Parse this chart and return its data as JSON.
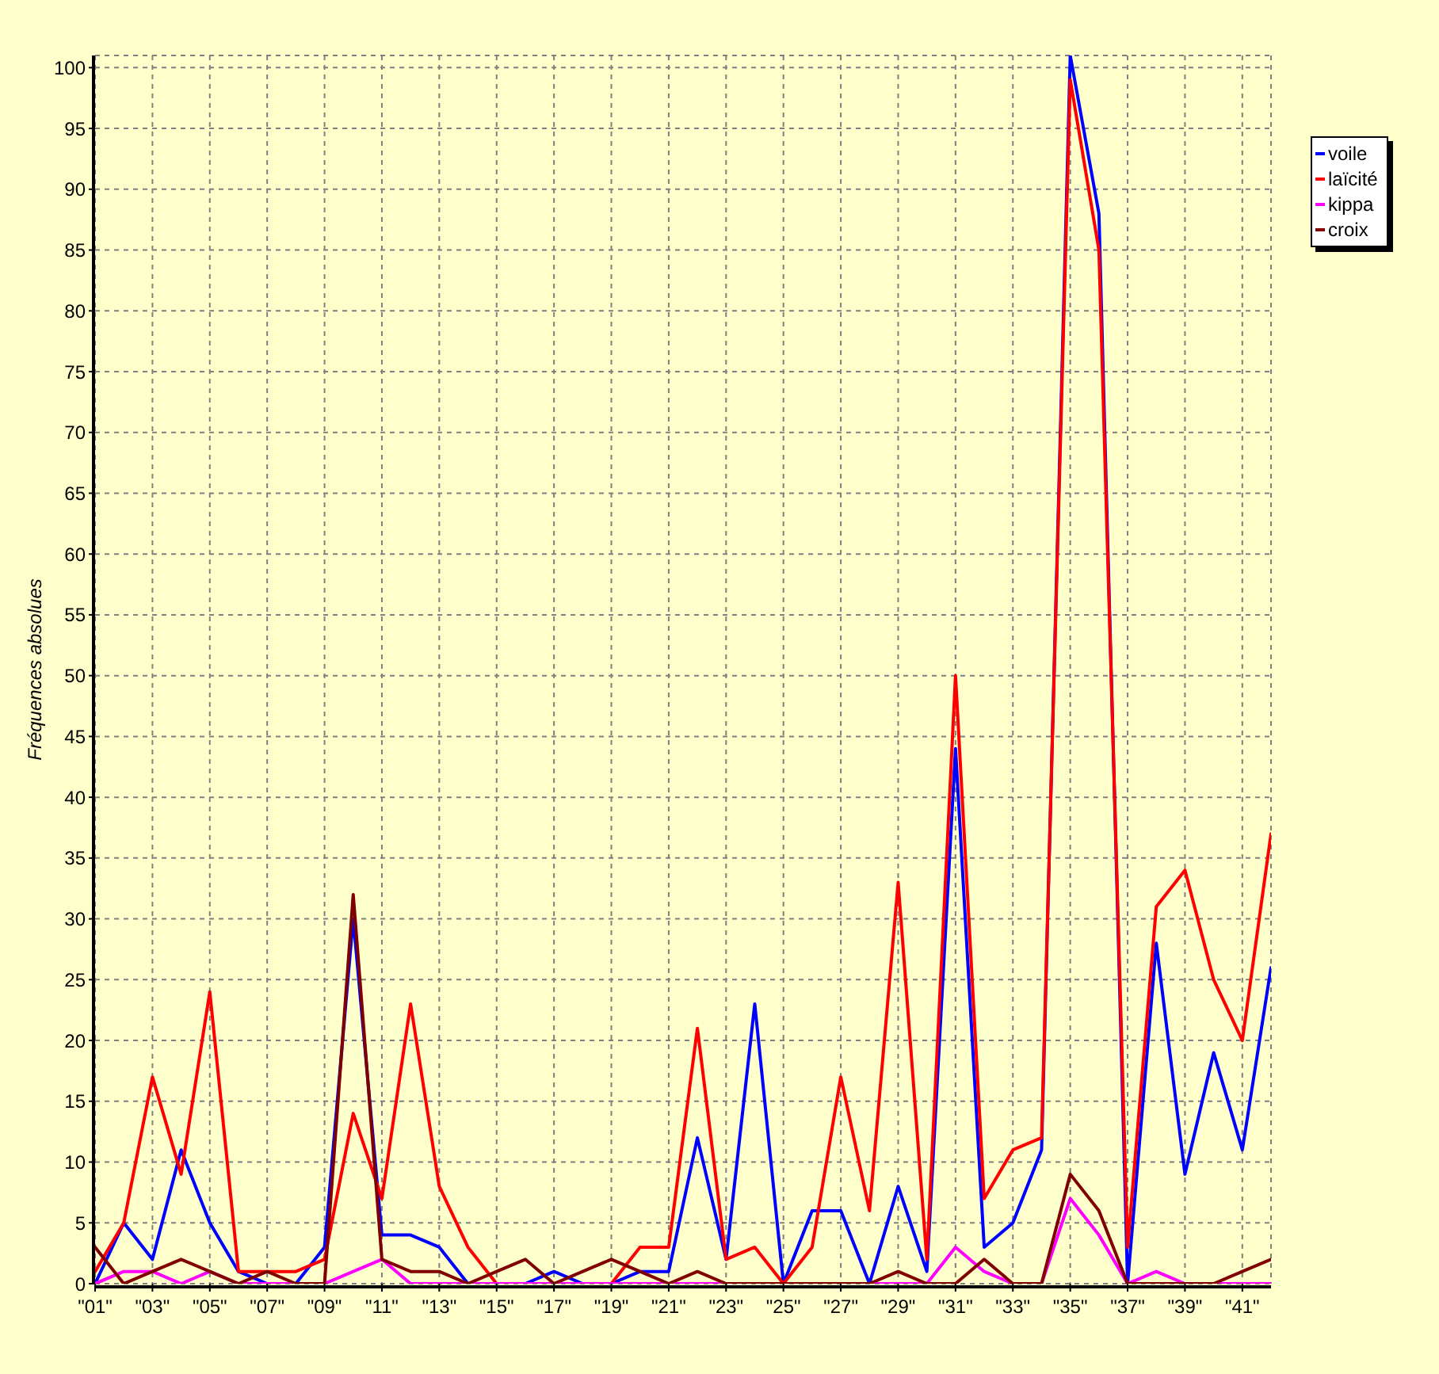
{
  "chart_data": {
    "type": "line",
    "ylabel": "Fréquences absolues",
    "categories": [
      "\"01\"",
      null,
      "\"03\"",
      null,
      "\"05\"",
      null,
      "\"07\"",
      null,
      "\"09\"",
      null,
      "\"11\"",
      null,
      "\"13\"",
      null,
      "\"15\"",
      null,
      "\"17\"",
      null,
      "\"19\"",
      null,
      "\"21\"",
      null,
      "\"23\"",
      null,
      "\"25\"",
      null,
      "\"27\"",
      null,
      "\"29\"",
      null,
      "\"31\"",
      null,
      "\"33\"",
      null,
      "\"35\"",
      null,
      "\"37\"",
      null,
      "\"39\"",
      null,
      "\"41\"",
      null
    ],
    "series": [
      {
        "name": "voile",
        "color": "#0000ff",
        "values": [
          0,
          5,
          2,
          11,
          5,
          1,
          0,
          0,
          3,
          30,
          4,
          4,
          3,
          0,
          0,
          0,
          1,
          0,
          0,
          1,
          1,
          12,
          2,
          23,
          0,
          6,
          6,
          0,
          8,
          1,
          44,
          3,
          5,
          11,
          101,
          88,
          0,
          28,
          9,
          19,
          11,
          26
        ]
      },
      {
        "name": "laïcité",
        "color": "#ff0000",
        "values": [
          1,
          5,
          17,
          9,
          24,
          1,
          1,
          1,
          2,
          14,
          7,
          23,
          8,
          3,
          0,
          0,
          0,
          0,
          0,
          3,
          3,
          21,
          2,
          3,
          0,
          3,
          17,
          6,
          33,
          2,
          50,
          7,
          11,
          12,
          99,
          85,
          3,
          31,
          34,
          25,
          20,
          37
        ]
      },
      {
        "name": "kippa",
        "color": "#ff00ff",
        "values": [
          0,
          1,
          1,
          0,
          1,
          0,
          0,
          0,
          0,
          1,
          2,
          0,
          0,
          0,
          0,
          0,
          0,
          0,
          0,
          0,
          0,
          0,
          0,
          0,
          0,
          0,
          0,
          0,
          0,
          0,
          3,
          1,
          0,
          0,
          7,
          4,
          0,
          1,
          0,
          0,
          0,
          0
        ]
      },
      {
        "name": "croix",
        "color": "#800000",
        "values": [
          3,
          0,
          1,
          2,
          1,
          0,
          1,
          0,
          0,
          32,
          2,
          1,
          1,
          0,
          1,
          2,
          0,
          1,
          2,
          1,
          0,
          1,
          0,
          0,
          0,
          0,
          0,
          0,
          1,
          0,
          0,
          2,
          0,
          0,
          9,
          6,
          0,
          0,
          0,
          0,
          1,
          2
        ]
      }
    ],
    "ylim": [
      0,
      101
    ],
    "yticks": [
      0,
      5,
      10,
      15,
      20,
      25,
      30,
      35,
      40,
      45,
      50,
      55,
      60,
      65,
      70,
      75,
      80,
      85,
      90,
      95,
      100
    ],
    "grid": true,
    "legend": "top right"
  }
}
